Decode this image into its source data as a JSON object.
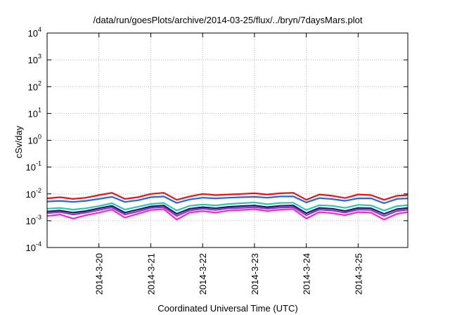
{
  "chart_data": {
    "type": "line",
    "title": "/data/run/goesPlots/archive/2014-03-25/flux/../bryn/7daysMars.plot",
    "xlabel": "Coordinated Universal Time (UTC)",
    "ylabel": "cSv/day",
    "yscale": "log",
    "ylim": [
      0.0001,
      10000
    ],
    "grid": true,
    "y_ticks": [
      {
        "base": "10",
        "exp": "-4"
      },
      {
        "base": "10",
        "exp": "-3"
      },
      {
        "base": "10",
        "exp": "-2"
      },
      {
        "base": "10",
        "exp": "-1"
      },
      {
        "base": "10",
        "exp": "0"
      },
      {
        "base": "10",
        "exp": "1"
      },
      {
        "base": "10",
        "exp": "2"
      },
      {
        "base": "10",
        "exp": "3"
      },
      {
        "base": "10",
        "exp": "4"
      }
    ],
    "x_ticks": [
      "2014-3-20",
      "2014-3-21",
      "2014-3-22",
      "2014-3-23",
      "2014-3-24",
      "2014-3-25"
    ],
    "x": [
      "2014-03-19 00:00",
      "2014-03-19 06:00",
      "2014-03-19 12:00",
      "2014-03-19 18:00",
      "2014-03-20 00:00",
      "2014-03-20 06:00",
      "2014-03-20 12:00",
      "2014-03-20 18:00",
      "2014-03-21 00:00",
      "2014-03-21 06:00",
      "2014-03-21 12:00",
      "2014-03-21 18:00",
      "2014-03-22 00:00",
      "2014-03-22 06:00",
      "2014-03-22 12:00",
      "2014-03-22 18:00",
      "2014-03-23 00:00",
      "2014-03-23 06:00",
      "2014-03-23 12:00",
      "2014-03-23 18:00",
      "2014-03-24 00:00",
      "2014-03-24 06:00",
      "2014-03-24 12:00",
      "2014-03-24 18:00",
      "2014-03-25 00:00",
      "2014-03-25 06:00",
      "2014-03-25 12:00",
      "2014-03-25 18:00",
      "2014-03-25 23:00"
    ],
    "series": [
      {
        "color": "#ee1111",
        "values": [
          0.0068,
          0.0075,
          0.0065,
          0.0072,
          0.009,
          0.011,
          0.0065,
          0.0075,
          0.01,
          0.011,
          0.006,
          0.008,
          0.01,
          0.009,
          0.0095,
          0.01,
          0.0105,
          0.0095,
          0.0105,
          0.011,
          0.006,
          0.0095,
          0.0085,
          0.007,
          0.0095,
          0.009,
          0.006,
          0.0085,
          0.009
        ]
      },
      {
        "color": "#2266ee",
        "values": [
          0.0052,
          0.0055,
          0.005,
          0.0055,
          0.0065,
          0.0078,
          0.005,
          0.0058,
          0.0075,
          0.008,
          0.0046,
          0.0062,
          0.0072,
          0.0068,
          0.0072,
          0.0075,
          0.0078,
          0.0072,
          0.008,
          0.008,
          0.0048,
          0.007,
          0.0064,
          0.0055,
          0.0068,
          0.0068,
          0.0045,
          0.0065,
          0.0068
        ]
      },
      {
        "color": "#22ccaa",
        "values": [
          0.0028,
          0.003,
          0.0026,
          0.0029,
          0.0035,
          0.0045,
          0.0026,
          0.0033,
          0.0042,
          0.0046,
          0.0024,
          0.0036,
          0.004,
          0.0037,
          0.0042,
          0.0045,
          0.0048,
          0.0041,
          0.0046,
          0.0047,
          0.0025,
          0.0038,
          0.0036,
          0.003,
          0.0039,
          0.0037,
          0.0024,
          0.0035,
          0.0038
        ]
      },
      {
        "color": "#1a1a66",
        "values": [
          0.0022,
          0.0024,
          0.002,
          0.0023,
          0.0029,
          0.0036,
          0.002,
          0.0026,
          0.0034,
          0.0037,
          0.0018,
          0.0028,
          0.0032,
          0.0029,
          0.0033,
          0.0035,
          0.0037,
          0.0032,
          0.0036,
          0.0037,
          0.0019,
          0.003,
          0.0028,
          0.0023,
          0.003,
          0.0029,
          0.0018,
          0.0027,
          0.003
        ]
      },
      {
        "color": "#8833cc",
        "values": [
          0.0019,
          0.0021,
          0.0017,
          0.002,
          0.0025,
          0.0031,
          0.0017,
          0.0022,
          0.003,
          0.0032,
          0.0015,
          0.0024,
          0.0028,
          0.0025,
          0.0029,
          0.003,
          0.0032,
          0.0028,
          0.0031,
          0.0032,
          0.0016,
          0.0026,
          0.0024,
          0.002,
          0.0026,
          0.0025,
          0.0015,
          0.0023,
          0.0026
        ]
      },
      {
        "color": "#ff22cc",
        "values": [
          0.0015,
          0.0017,
          0.0012,
          0.0016,
          0.002,
          0.0026,
          0.0013,
          0.0018,
          0.0025,
          0.0027,
          0.0011,
          0.002,
          0.0023,
          0.002,
          0.0024,
          0.0025,
          0.0027,
          0.0023,
          0.0026,
          0.0027,
          0.0012,
          0.0021,
          0.0019,
          0.0016,
          0.0021,
          0.002,
          0.0011,
          0.0018,
          0.0021
        ]
      }
    ]
  }
}
